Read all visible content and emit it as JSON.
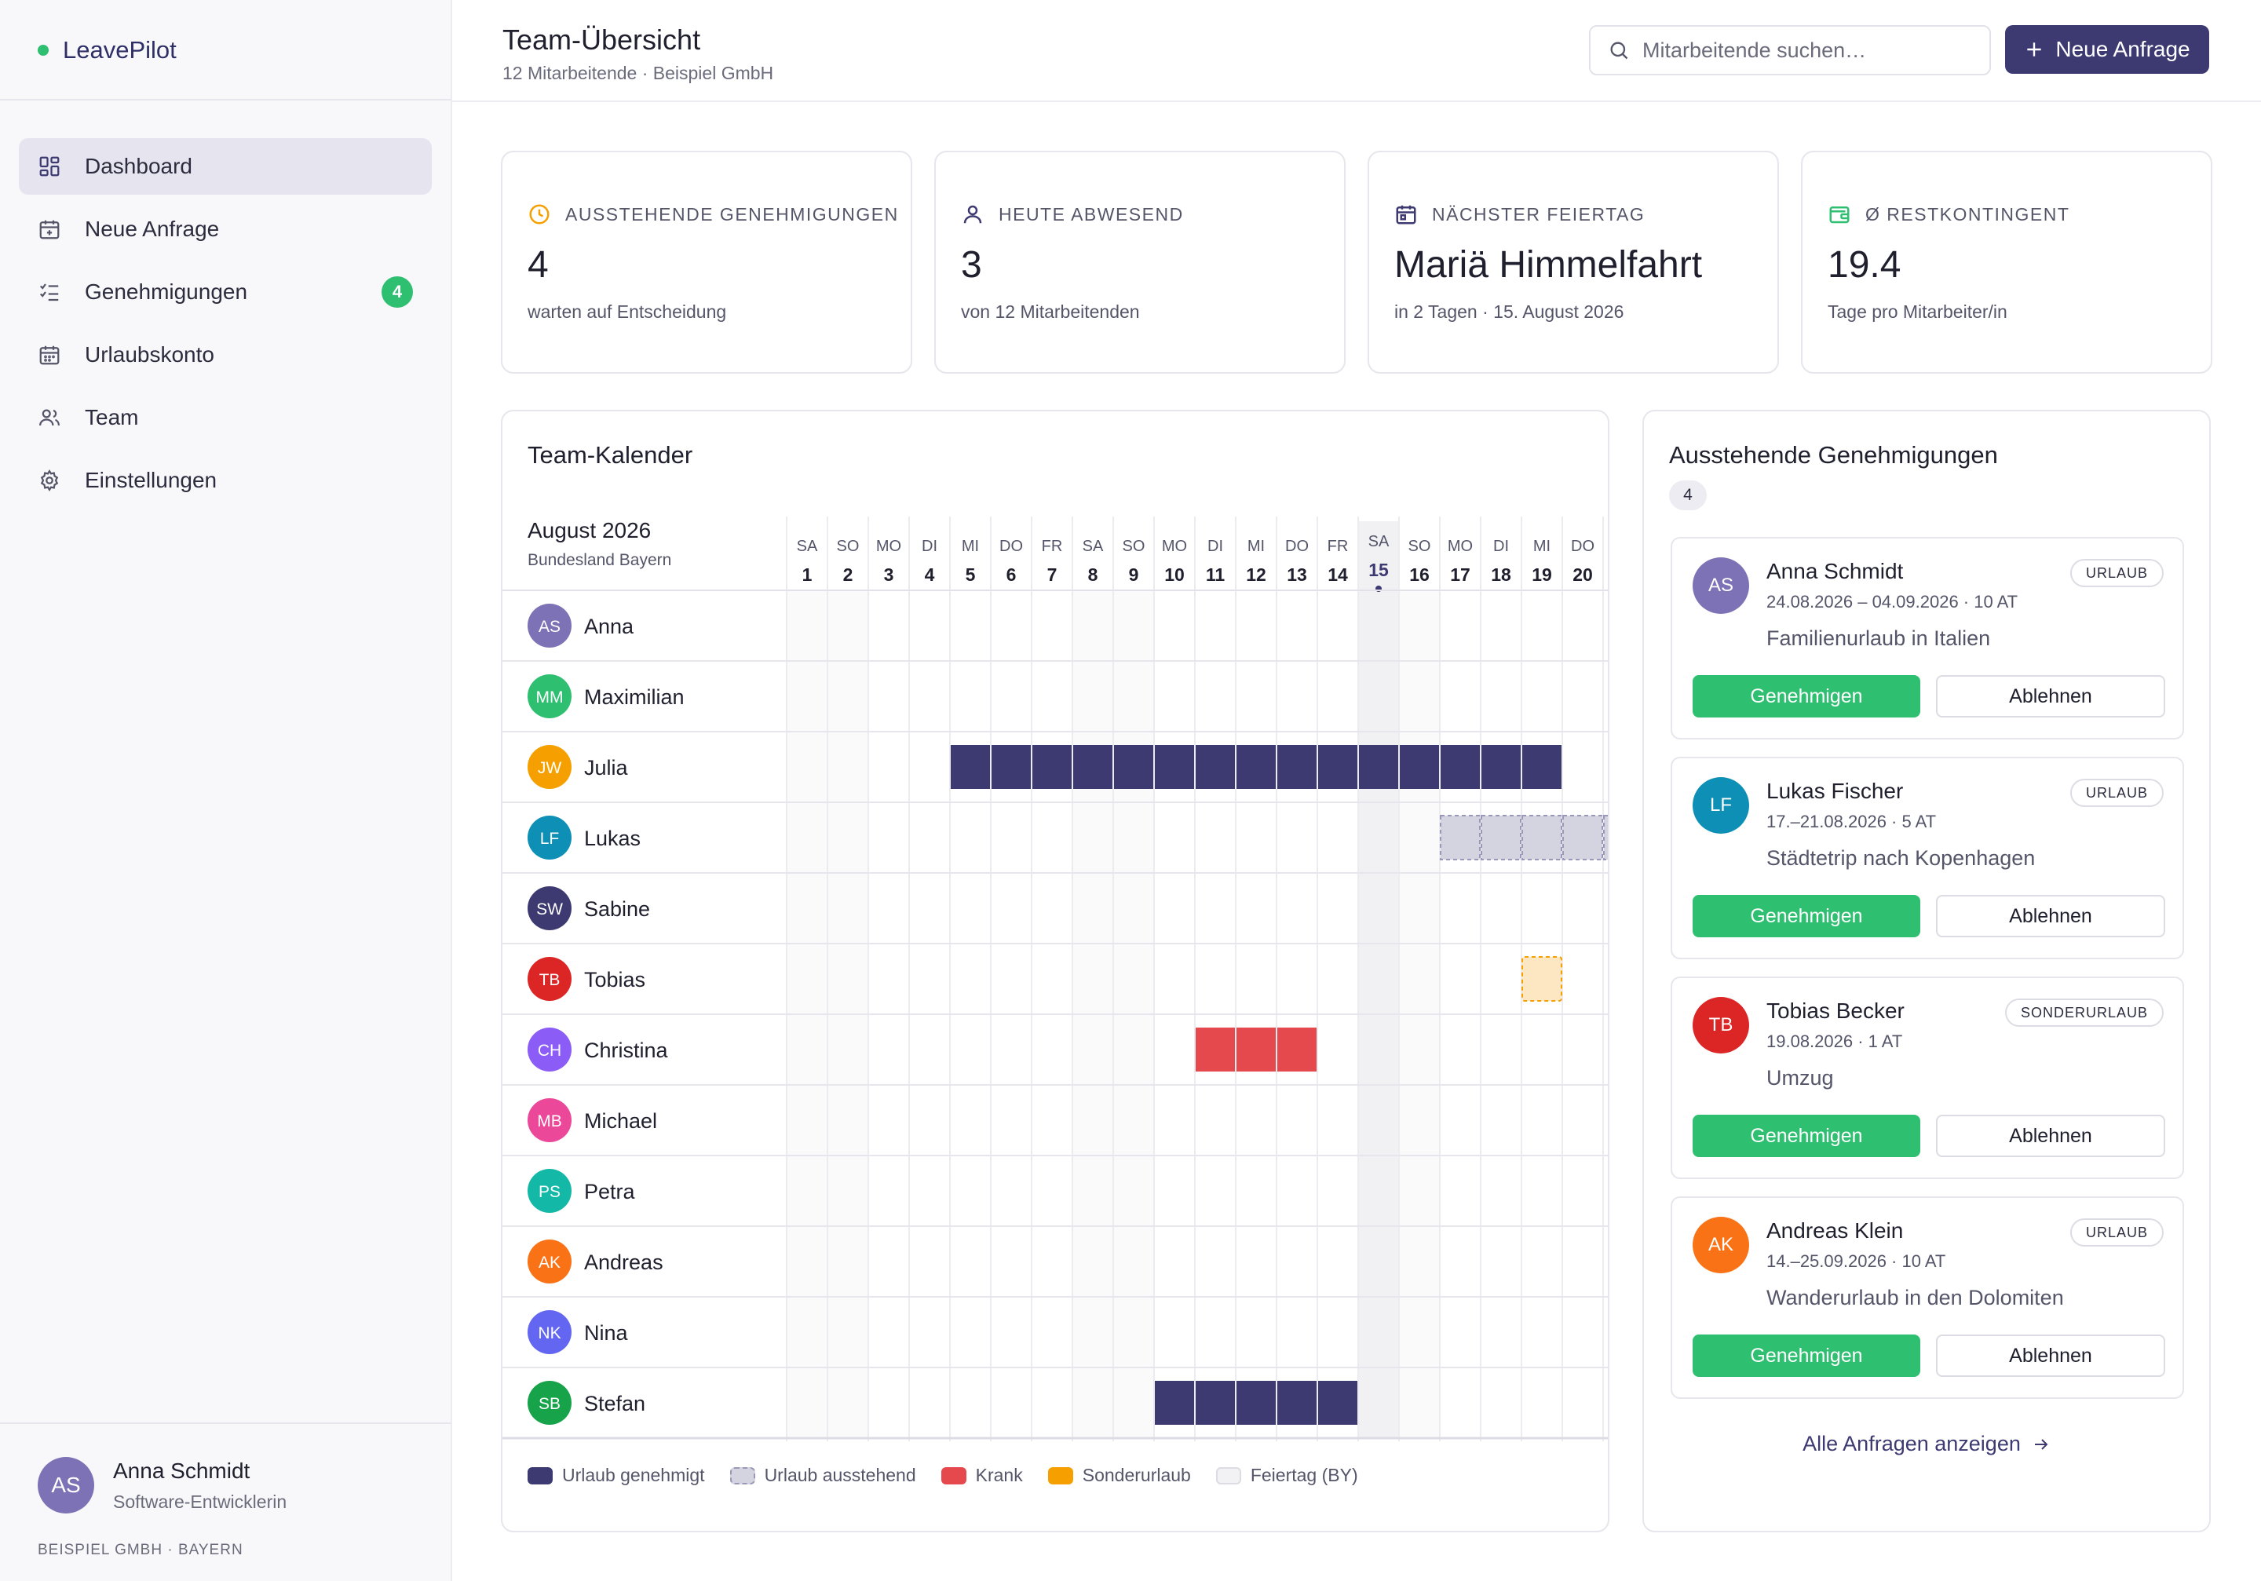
{
  "app": {
    "name": "LeavePilot",
    "accent": "#3d3a72",
    "success": "#2fbf71"
  },
  "sidebar": {
    "items": [
      {
        "label": "Dashboard",
        "icon": "dashboard-icon",
        "active": true
      },
      {
        "label": "Neue Anfrage",
        "icon": "calendar-plus-icon"
      },
      {
        "label": "Genehmigungen",
        "icon": "checklist-icon",
        "badge": "4"
      },
      {
        "label": "Urlaubskonto",
        "icon": "calendar-icon"
      },
      {
        "label": "Team",
        "icon": "users-icon"
      },
      {
        "label": "Einstellungen",
        "icon": "gear-icon"
      }
    ],
    "user": {
      "initials": "AS",
      "name": "Anna Schmidt",
      "role": "Software-Entwicklerin"
    },
    "company": "BEISPIEL GMBH · BAYERN"
  },
  "header": {
    "title": "Team-Übersicht",
    "subtitle": "12 Mitarbeitende · Beispiel GmbH",
    "search_placeholder": "Mitarbeitende suchen…",
    "new_button": "Neue Anfrage"
  },
  "stats": [
    {
      "label": "AUSSTEHENDE GENEHMIGUNGEN",
      "value": "4",
      "desc": "warten auf Entscheidung",
      "icon": "clock-icon",
      "color": "#f5a000"
    },
    {
      "label": "HEUTE ABWESEND",
      "value": "3",
      "desc": "von 12 Mitarbeitenden",
      "icon": "user-icon",
      "color": "#3d3a72"
    },
    {
      "label": "NÄCHSTER FEIERTAG",
      "value": "Mariä Himmelfahrt",
      "desc": "in 2 Tagen · 15. August 2026",
      "icon": "calendar-holiday-icon",
      "color": "#3d3a72"
    },
    {
      "label": "Ø RESTKONTINGENT",
      "value": "19.4",
      "desc": "Tage pro Mitarbeiter/in",
      "icon": "wallet-icon",
      "color": "#2fbf71"
    }
  ],
  "calendar": {
    "title": "Team-Kalender",
    "month": "August 2026",
    "region": "Bundesland Bayern",
    "days": [
      {
        "wd": "SA",
        "d": "1",
        "weekend": true
      },
      {
        "wd": "SO",
        "d": "2",
        "weekend": true
      },
      {
        "wd": "MO",
        "d": "3"
      },
      {
        "wd": "DI",
        "d": "4"
      },
      {
        "wd": "MI",
        "d": "5"
      },
      {
        "wd": "DO",
        "d": "6"
      },
      {
        "wd": "FR",
        "d": "7"
      },
      {
        "wd": "SA",
        "d": "8",
        "weekend": true
      },
      {
        "wd": "SO",
        "d": "9",
        "weekend": true
      },
      {
        "wd": "MO",
        "d": "10"
      },
      {
        "wd": "DI",
        "d": "11"
      },
      {
        "wd": "MI",
        "d": "12"
      },
      {
        "wd": "DO",
        "d": "13"
      },
      {
        "wd": "FR",
        "d": "14"
      },
      {
        "wd": "SA",
        "d": "15",
        "weekend": true,
        "holiday": true,
        "highlight": true
      },
      {
        "wd": "SO",
        "d": "16",
        "weekend": true
      },
      {
        "wd": "MO",
        "d": "17"
      },
      {
        "wd": "DI",
        "d": "18"
      },
      {
        "wd": "MI",
        "d": "19"
      },
      {
        "wd": "DO",
        "d": "20"
      }
    ],
    "people": [
      {
        "initials": "AS",
        "name": "Anna",
        "color": "#7d72b5",
        "absences": []
      },
      {
        "initials": "MM",
        "name": "Maximilian",
        "color": "#2fbf71",
        "absences": []
      },
      {
        "initials": "JW",
        "name": "Julia",
        "color": "#f5a000",
        "absences": [
          {
            "type": "approved",
            "from": 5,
            "to": 19
          }
        ]
      },
      {
        "initials": "LF",
        "name": "Lukas",
        "color": "#0e8fb5",
        "absences": [
          {
            "type": "pending",
            "from": 17,
            "to": 21
          }
        ]
      },
      {
        "initials": "SW",
        "name": "Sabine",
        "color": "#3d3a72",
        "absences": []
      },
      {
        "initials": "TB",
        "name": "Tobias",
        "color": "#dc2626",
        "absences": [
          {
            "type": "special",
            "from": 19,
            "to": 19
          }
        ]
      },
      {
        "initials": "CH",
        "name": "Christina",
        "color": "#8b5cf6",
        "absences": [
          {
            "type": "sick",
            "from": 11,
            "to": 13
          }
        ]
      },
      {
        "initials": "MB",
        "name": "Michael",
        "color": "#ec4899",
        "absences": []
      },
      {
        "initials": "PS",
        "name": "Petra",
        "color": "#14b8a6",
        "absences": []
      },
      {
        "initials": "AK",
        "name": "Andreas",
        "color": "#f97316",
        "absences": []
      },
      {
        "initials": "NK",
        "name": "Nina",
        "color": "#6366f1",
        "absences": []
      },
      {
        "initials": "SB",
        "name": "Stefan",
        "color": "#16a34a",
        "absences": [
          {
            "type": "approved",
            "from": 10,
            "to": 14
          }
        ]
      }
    ],
    "legend": [
      {
        "label": "Urlaub genehmigt",
        "type": "approved"
      },
      {
        "label": "Urlaub ausstehend",
        "type": "pending"
      },
      {
        "label": "Krank",
        "type": "sick"
      },
      {
        "label": "Sonderurlaub",
        "type": "special"
      },
      {
        "label": "Feiertag (BY)",
        "type": "holiday"
      }
    ],
    "colors": {
      "approved": "#3d3a72",
      "pending": "#d4d3e0",
      "sick": "#e5484d",
      "special": "#fde7c2",
      "holiday": "#f2f2f4"
    }
  },
  "pending": {
    "title": "Ausstehende Genehmigungen",
    "count": "4",
    "requests": [
      {
        "initials": "AS",
        "color": "#7d72b5",
        "name": "Anna Schmidt",
        "dates": "24.08.2026 – 04.09.2026 · 10 AT",
        "reason": "Familienurlaub in Italien",
        "tag": "URLAUB"
      },
      {
        "initials": "LF",
        "color": "#0e8fb5",
        "name": "Lukas Fischer",
        "dates": "17.–21.08.2026 · 5 AT",
        "reason": "Städtetrip nach Kopenhagen",
        "tag": "URLAUB"
      },
      {
        "initials": "TB",
        "color": "#dc2626",
        "name": "Tobias Becker",
        "dates": "19.08.2026 · 1 AT",
        "reason": "Umzug",
        "tag": "SONDERURLAUB"
      },
      {
        "initials": "AK",
        "color": "#f97316",
        "name": "Andreas Klein",
        "dates": "14.–25.09.2026 · 10 AT",
        "reason": "Wanderurlaub in den Dolomiten",
        "tag": "URLAUB"
      }
    ],
    "approve_label": "Genehmigen",
    "reject_label": "Ablehnen",
    "all_link": "Alle Anfragen anzeigen"
  }
}
